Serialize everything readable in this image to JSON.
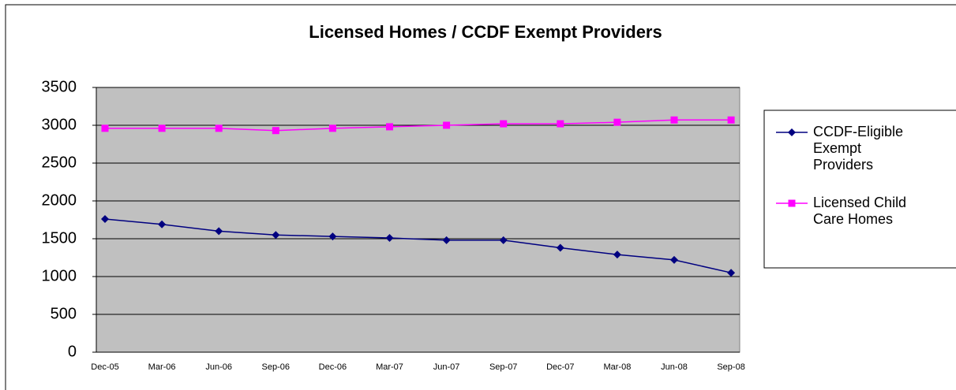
{
  "chart_data": {
    "type": "line",
    "title": "Licensed Homes / CCDF Exempt Providers",
    "categories": [
      "Dec-05",
      "Mar-06",
      "Jun-06",
      "Sep-06",
      "Dec-06",
      "Mar-07",
      "Jun-07",
      "Sep-07",
      "Dec-07",
      "Mar-08",
      "Jun-08",
      "Sep-08"
    ],
    "series": [
      {
        "name": "CCDF-Eligible Exempt Providers",
        "color": "#000080",
        "marker": "diamond",
        "values": [
          1760,
          1690,
          1600,
          1550,
          1530,
          1510,
          1480,
          1480,
          1380,
          1290,
          1220,
          1050
        ]
      },
      {
        "name": "Licensed Child Care Homes",
        "color": "#ff00ff",
        "marker": "square",
        "values": [
          2960,
          2960,
          2960,
          2930,
          2960,
          2980,
          3000,
          3020,
          3020,
          3040,
          3070,
          3070
        ]
      }
    ],
    "ylim": [
      0,
      3500
    ],
    "yticks": [
      0,
      500,
      1000,
      1500,
      2000,
      2500,
      3000,
      3500
    ],
    "grid": true,
    "legend": "right"
  }
}
